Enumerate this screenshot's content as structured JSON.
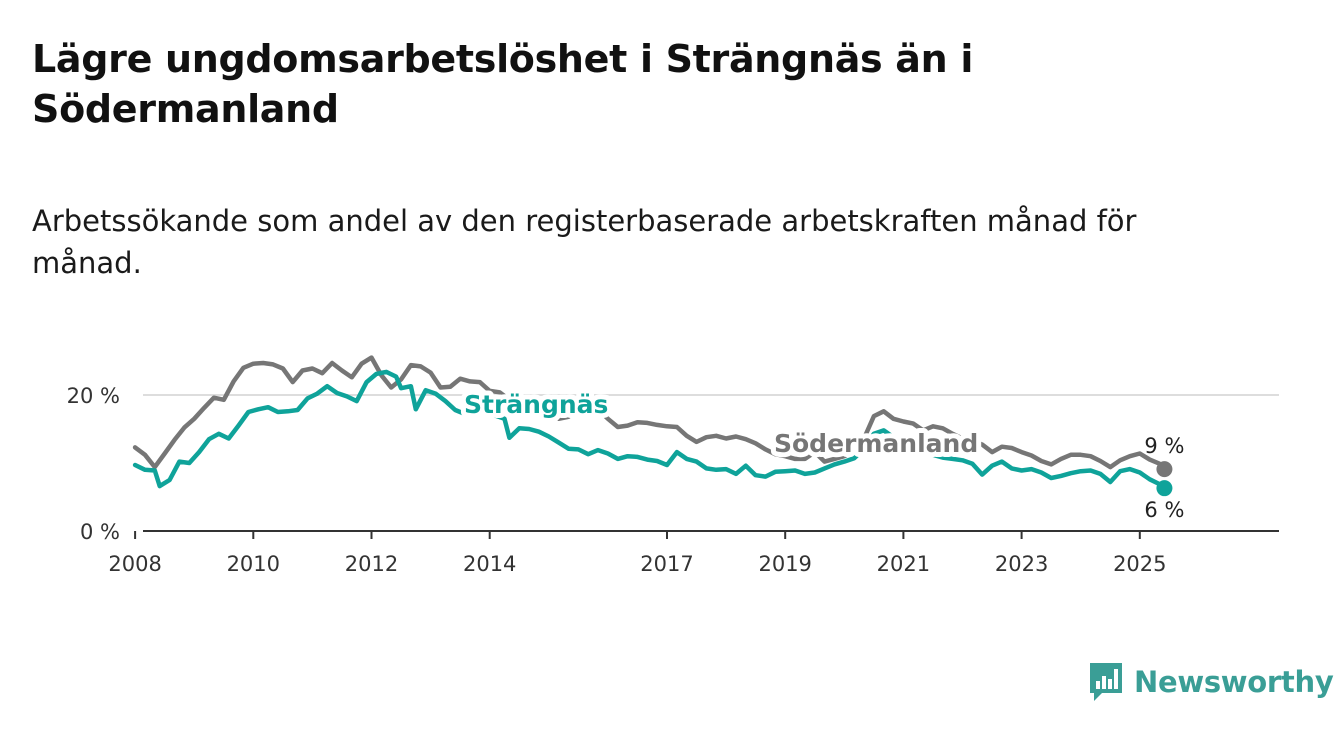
{
  "title": "Lägre ungdomsarbetslöshet i Strängnäs än i Södermanland",
  "subtitle": "Arbetssökande som andel av den registerbaserade arbetskraften månad för månad.",
  "brand": {
    "name": "Newsworthy",
    "color": "#3a9e96",
    "icon": "bar-chart-logo-icon"
  },
  "colors": {
    "strangnas": "#0fa39a",
    "sodermanland": "#767676",
    "grid": "#dddddd",
    "axis": "#333333"
  },
  "chart_data": {
    "type": "line",
    "title": "Lägre ungdomsarbetslöshet i Strängnäs än i Södermanland",
    "subtitle": "Arbetssökande som andel av den registerbaserade arbetskraften månad för månad.",
    "xlabel": "",
    "ylabel": "",
    "x_ticks": [
      "2008",
      "2010",
      "2012",
      "2014",
      "2017",
      "2019",
      "2021",
      "2023",
      "2025"
    ],
    "y_ticks": [
      "0 %",
      "20 %"
    ],
    "ylim": [
      0,
      25
    ],
    "grid": true,
    "legend": "inline labels",
    "series": [
      {
        "name": "Södermanland",
        "end_label": "9 %",
        "points": [
          [
            "2008-01",
            12.3
          ],
          [
            "2008-03",
            11.2
          ],
          [
            "2008-05",
            9.4
          ],
          [
            "2008-07",
            11.4
          ],
          [
            "2008-09",
            13.4
          ],
          [
            "2008-11",
            15.2
          ],
          [
            "2009-01",
            16.5
          ],
          [
            "2009-03",
            18.1
          ],
          [
            "2009-05",
            19.6
          ],
          [
            "2009-07",
            19.3
          ],
          [
            "2009-09",
            22.0
          ],
          [
            "2009-11",
            24.0
          ],
          [
            "2010-01",
            24.6
          ],
          [
            "2010-03",
            24.7
          ],
          [
            "2010-05",
            24.5
          ],
          [
            "2010-07",
            23.9
          ],
          [
            "2010-09",
            21.9
          ],
          [
            "2010-11",
            23.6
          ],
          [
            "2011-01",
            23.9
          ],
          [
            "2011-03",
            23.2
          ],
          [
            "2011-05",
            24.7
          ],
          [
            "2011-07",
            23.6
          ],
          [
            "2011-09",
            22.6
          ],
          [
            "2011-11",
            24.6
          ],
          [
            "2012-01",
            25.5
          ],
          [
            "2012-03",
            22.9
          ],
          [
            "2012-05",
            21.1
          ],
          [
            "2012-07",
            22.3
          ],
          [
            "2012-09",
            24.4
          ],
          [
            "2012-11",
            24.2
          ],
          [
            "2013-01",
            23.3
          ],
          [
            "2013-03",
            21.1
          ],
          [
            "2013-05",
            21.2
          ],
          [
            "2013-07",
            22.4
          ],
          [
            "2013-09",
            22.0
          ],
          [
            "2013-11",
            21.9
          ],
          [
            "2014-01",
            20.6
          ],
          [
            "2014-03",
            20.4
          ],
          [
            "2014-05",
            19.3
          ],
          [
            "2014-07",
            18.6
          ],
          [
            "2014-09",
            17.7
          ],
          [
            "2014-11",
            17.3
          ],
          [
            "2015-01",
            17.6
          ],
          [
            "2015-03",
            16.5
          ],
          [
            "2015-05",
            16.8
          ],
          [
            "2015-07",
            18.3
          ],
          [
            "2015-09",
            17.7
          ],
          [
            "2015-11",
            17.9
          ],
          [
            "2016-01",
            16.5
          ],
          [
            "2016-03",
            15.3
          ],
          [
            "2016-05",
            15.5
          ],
          [
            "2016-07",
            16.0
          ],
          [
            "2016-09",
            15.9
          ],
          [
            "2016-11",
            15.6
          ],
          [
            "2017-01",
            15.4
          ],
          [
            "2017-03",
            15.3
          ],
          [
            "2017-05",
            14.0
          ],
          [
            "2017-07",
            13.1
          ],
          [
            "2017-09",
            13.8
          ],
          [
            "2017-11",
            14.0
          ],
          [
            "2018-01",
            13.6
          ],
          [
            "2018-03",
            13.9
          ],
          [
            "2018-05",
            13.5
          ],
          [
            "2018-07",
            12.9
          ],
          [
            "2018-09",
            12.0
          ],
          [
            "2018-11",
            11.3
          ],
          [
            "2019-01",
            11.0
          ],
          [
            "2019-03",
            10.6
          ],
          [
            "2019-05",
            10.6
          ],
          [
            "2019-07",
            11.6
          ],
          [
            "2019-09",
            10.2
          ],
          [
            "2019-11",
            10.6
          ],
          [
            "2020-01",
            11.0
          ],
          [
            "2020-03",
            11.8
          ],
          [
            "2020-05",
            13.6
          ],
          [
            "2020-07",
            16.9
          ],
          [
            "2020-09",
            17.6
          ],
          [
            "2020-11",
            16.5
          ],
          [
            "2021-01",
            16.1
          ],
          [
            "2021-03",
            15.8
          ],
          [
            "2021-05",
            14.8
          ],
          [
            "2021-07",
            15.4
          ],
          [
            "2021-09",
            15.1
          ],
          [
            "2021-11",
            14.3
          ],
          [
            "2022-01",
            13.6
          ],
          [
            "2022-03",
            13.3
          ],
          [
            "2022-05",
            12.7
          ],
          [
            "2022-07",
            11.6
          ],
          [
            "2022-09",
            12.4
          ],
          [
            "2022-11",
            12.2
          ],
          [
            "2023-01",
            11.6
          ],
          [
            "2023-03",
            11.1
          ],
          [
            "2023-05",
            10.3
          ],
          [
            "2023-07",
            9.8
          ],
          [
            "2023-09",
            10.6
          ],
          [
            "2023-11",
            11.2
          ],
          [
            "2024-01",
            11.2
          ],
          [
            "2024-03",
            11.0
          ],
          [
            "2024-05",
            10.3
          ],
          [
            "2024-07",
            9.4
          ],
          [
            "2024-09",
            10.4
          ],
          [
            "2024-11",
            11.0
          ],
          [
            "2025-01",
            11.4
          ],
          [
            "2025-03",
            10.5
          ],
          [
            "2025-05",
            9.9
          ],
          [
            "2025-06",
            9.1
          ]
        ]
      },
      {
        "name": "Strängnäs",
        "end_label": "6 %",
        "points": [
          [
            "2008-01",
            9.7
          ],
          [
            "2008-03",
            9.0
          ],
          [
            "2008-05",
            8.9
          ],
          [
            "2008-06",
            6.6
          ],
          [
            "2008-08",
            7.5
          ],
          [
            "2008-10",
            10.2
          ],
          [
            "2008-12",
            10.0
          ],
          [
            "2009-02",
            11.6
          ],
          [
            "2009-04",
            13.5
          ],
          [
            "2009-06",
            14.3
          ],
          [
            "2009-08",
            13.6
          ],
          [
            "2009-10",
            15.5
          ],
          [
            "2009-12",
            17.5
          ],
          [
            "2010-02",
            17.9
          ],
          [
            "2010-04",
            18.2
          ],
          [
            "2010-06",
            17.5
          ],
          [
            "2010-08",
            17.6
          ],
          [
            "2010-10",
            17.8
          ],
          [
            "2010-12",
            19.5
          ],
          [
            "2011-02",
            20.2
          ],
          [
            "2011-04",
            21.3
          ],
          [
            "2011-06",
            20.3
          ],
          [
            "2011-08",
            19.8
          ],
          [
            "2011-10",
            19.1
          ],
          [
            "2011-12",
            21.9
          ],
          [
            "2012-02",
            23.1
          ],
          [
            "2012-04",
            23.4
          ],
          [
            "2012-06",
            22.7
          ],
          [
            "2012-07",
            21.0
          ],
          [
            "2012-09",
            21.3
          ],
          [
            "2012-10",
            17.9
          ],
          [
            "2012-12",
            20.7
          ],
          [
            "2013-02",
            20.2
          ],
          [
            "2013-04",
            19.1
          ],
          [
            "2013-06",
            17.8
          ],
          [
            "2013-08",
            17.2
          ],
          [
            "2013-10",
            17.8
          ],
          [
            "2013-12",
            17.3
          ],
          [
            "2014-02",
            17.0
          ],
          [
            "2014-04",
            16.5
          ],
          [
            "2014-05",
            13.7
          ],
          [
            "2014-07",
            15.1
          ],
          [
            "2014-09",
            15.0
          ],
          [
            "2014-11",
            14.6
          ],
          [
            "2015-01",
            13.9
          ],
          [
            "2015-03",
            13.0
          ],
          [
            "2015-05",
            12.1
          ],
          [
            "2015-07",
            12.0
          ],
          [
            "2015-09",
            11.3
          ],
          [
            "2015-11",
            11.9
          ],
          [
            "2016-01",
            11.4
          ],
          [
            "2016-03",
            10.6
          ],
          [
            "2016-05",
            11.0
          ],
          [
            "2016-07",
            10.9
          ],
          [
            "2016-09",
            10.5
          ],
          [
            "2016-11",
            10.3
          ],
          [
            "2017-01",
            9.7
          ],
          [
            "2017-03",
            11.6
          ],
          [
            "2017-05",
            10.6
          ],
          [
            "2017-07",
            10.2
          ],
          [
            "2017-09",
            9.2
          ],
          [
            "2017-11",
            9.0
          ],
          [
            "2018-01",
            9.1
          ],
          [
            "2018-03",
            8.4
          ],
          [
            "2018-05",
            9.6
          ],
          [
            "2018-07",
            8.2
          ],
          [
            "2018-09",
            8.0
          ],
          [
            "2018-11",
            8.7
          ],
          [
            "2019-01",
            8.8
          ],
          [
            "2019-03",
            8.9
          ],
          [
            "2019-05",
            8.4
          ],
          [
            "2019-07",
            8.6
          ],
          [
            "2019-09",
            9.2
          ],
          [
            "2019-11",
            9.8
          ],
          [
            "2020-01",
            10.2
          ],
          [
            "2020-03",
            10.7
          ],
          [
            "2020-05",
            12.1
          ],
          [
            "2020-07",
            14.3
          ],
          [
            "2020-09",
            14.8
          ],
          [
            "2020-11",
            13.8
          ],
          [
            "2021-01",
            13.6
          ],
          [
            "2021-03",
            12.9
          ],
          [
            "2021-05",
            11.8
          ],
          [
            "2021-07",
            11.2
          ],
          [
            "2021-09",
            10.8
          ],
          [
            "2021-11",
            10.6
          ],
          [
            "2022-01",
            10.4
          ],
          [
            "2022-03",
            9.9
          ],
          [
            "2022-05",
            8.3
          ],
          [
            "2022-07",
            9.6
          ],
          [
            "2022-09",
            10.2
          ],
          [
            "2022-11",
            9.2
          ],
          [
            "2023-01",
            8.9
          ],
          [
            "2023-03",
            9.1
          ],
          [
            "2023-05",
            8.6
          ],
          [
            "2023-07",
            7.8
          ],
          [
            "2023-09",
            8.1
          ],
          [
            "2023-11",
            8.5
          ],
          [
            "2024-01",
            8.8
          ],
          [
            "2024-03",
            8.9
          ],
          [
            "2024-05",
            8.4
          ],
          [
            "2024-07",
            7.2
          ],
          [
            "2024-09",
            8.8
          ],
          [
            "2024-11",
            9.1
          ],
          [
            "2025-01",
            8.6
          ],
          [
            "2025-03",
            7.6
          ],
          [
            "2025-05",
            6.9
          ],
          [
            "2025-06",
            6.3
          ]
        ]
      }
    ]
  }
}
